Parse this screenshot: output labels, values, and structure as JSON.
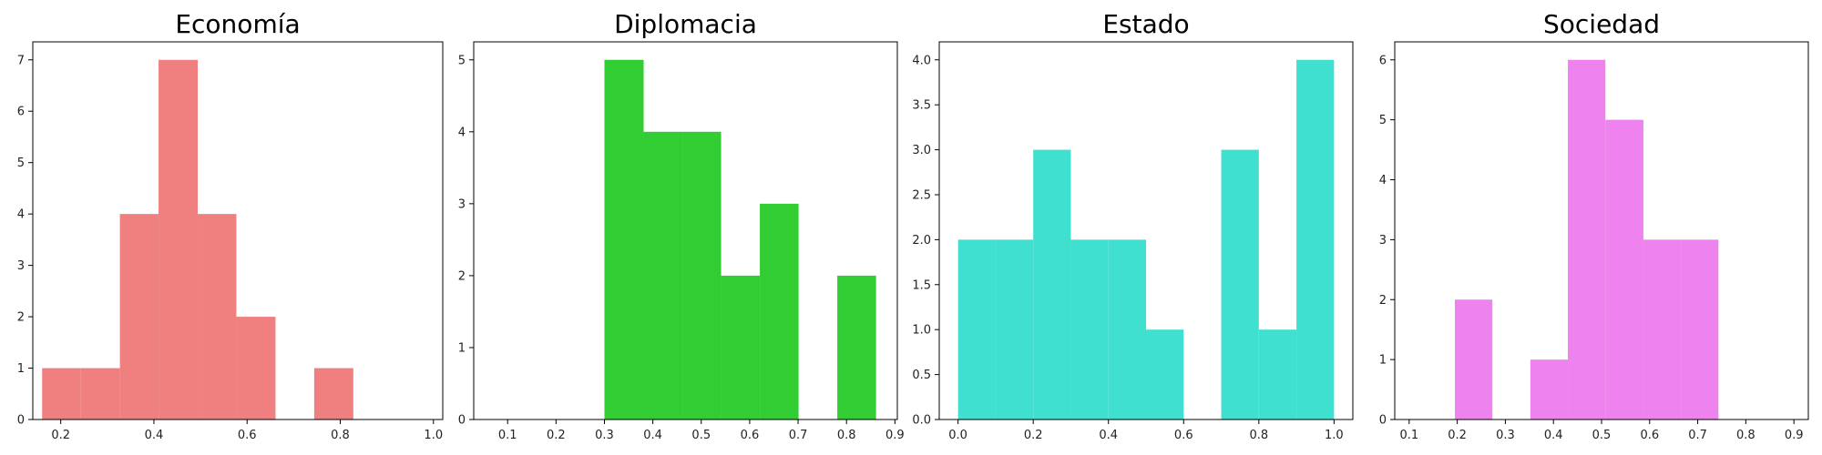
{
  "chart_data": [
    {
      "type": "bar",
      "title": "Economía",
      "color": "#f08080",
      "xlim": [
        0.14,
        1.02
      ],
      "ylim": [
        0,
        7.35
      ],
      "xticks": [
        0.2,
        0.4,
        0.6,
        0.8,
        1.0
      ],
      "xtick_labels": [
        "0.2",
        "0.4",
        "0.6",
        "0.8",
        "1.0"
      ],
      "yticks": [
        0,
        1,
        2,
        3,
        4,
        5,
        6,
        7
      ],
      "ytick_labels": [
        "0",
        "1",
        "2",
        "3",
        "4",
        "5",
        "6",
        "7"
      ],
      "bins": [
        {
          "x0": 0.16,
          "x1": 0.243,
          "count": 1
        },
        {
          "x0": 0.243,
          "x1": 0.327,
          "count": 1
        },
        {
          "x0": 0.327,
          "x1": 0.41,
          "count": 4
        },
        {
          "x0": 0.41,
          "x1": 0.494,
          "count": 7
        },
        {
          "x0": 0.494,
          "x1": 0.577,
          "count": 4
        },
        {
          "x0": 0.577,
          "x1": 0.661,
          "count": 2
        },
        {
          "x0": 0.661,
          "x1": 0.744,
          "count": 0
        },
        {
          "x0": 0.744,
          "x1": 0.828,
          "count": 1
        }
      ]
    },
    {
      "type": "bar",
      "title": "Diplomacia",
      "color": "#32cd32",
      "xlim": [
        0.03,
        0.905
      ],
      "ylim": [
        0,
        5.25
      ],
      "xticks": [
        0.1,
        0.2,
        0.3,
        0.4,
        0.5,
        0.6,
        0.7,
        0.8,
        0.9
      ],
      "xtick_labels": [
        "0.1",
        "0.2",
        "0.3",
        "0.4",
        "0.5",
        "0.6",
        "0.7",
        "0.8",
        "0.9"
      ],
      "yticks": [
        0,
        1,
        2,
        3,
        4,
        5
      ],
      "ytick_labels": [
        "0",
        "1",
        "2",
        "3",
        "4",
        "5"
      ],
      "bins": [
        {
          "x0": 0.3,
          "x1": 0.381,
          "count": 5
        },
        {
          "x0": 0.381,
          "x1": 0.461,
          "count": 4
        },
        {
          "x0": 0.461,
          "x1": 0.541,
          "count": 4
        },
        {
          "x0": 0.541,
          "x1": 0.621,
          "count": 2
        },
        {
          "x0": 0.621,
          "x1": 0.701,
          "count": 3
        },
        {
          "x0": 0.701,
          "x1": 0.781,
          "count": 0
        },
        {
          "x0": 0.781,
          "x1": 0.861,
          "count": 2
        }
      ]
    },
    {
      "type": "bar",
      "title": "Estado",
      "color": "#40e0d0",
      "xlim": [
        -0.05,
        1.05
      ],
      "ylim": [
        0,
        4.2
      ],
      "xticks": [
        0.0,
        0.2,
        0.4,
        0.6,
        0.8,
        1.0
      ],
      "xtick_labels": [
        "0.0",
        "0.2",
        "0.4",
        "0.6",
        "0.8",
        "1.0"
      ],
      "yticks": [
        0,
        0.5,
        1,
        1.5,
        2,
        2.5,
        3,
        3.5,
        4
      ],
      "ytick_labels": [
        "0.0",
        "0.5",
        "1.0",
        "1.5",
        "2.0",
        "2.5",
        "3.0",
        "3.5",
        "4.0"
      ],
      "bins": [
        {
          "x0": 0.0,
          "x1": 0.1,
          "count": 2
        },
        {
          "x0": 0.1,
          "x1": 0.2,
          "count": 2
        },
        {
          "x0": 0.2,
          "x1": 0.3,
          "count": 3
        },
        {
          "x0": 0.3,
          "x1": 0.4,
          "count": 2
        },
        {
          "x0": 0.4,
          "x1": 0.5,
          "count": 2
        },
        {
          "x0": 0.5,
          "x1": 0.6,
          "count": 1
        },
        {
          "x0": 0.6,
          "x1": 0.7,
          "count": 0
        },
        {
          "x0": 0.7,
          "x1": 0.8,
          "count": 3
        },
        {
          "x0": 0.8,
          "x1": 0.9,
          "count": 1
        },
        {
          "x0": 0.9,
          "x1": 1.0,
          "count": 4
        }
      ]
    },
    {
      "type": "bar",
      "title": "Sociedad",
      "color": "#ee82ee",
      "xlim": [
        0.07,
        0.93
      ],
      "ylim": [
        0,
        6.3
      ],
      "xticks": [
        0.1,
        0.2,
        0.3,
        0.4,
        0.5,
        0.6,
        0.7,
        0.8,
        0.9
      ],
      "xtick_labels": [
        "0.1",
        "0.2",
        "0.3",
        "0.4",
        "0.5",
        "0.6",
        "0.7",
        "0.8",
        "0.9"
      ],
      "yticks": [
        0,
        1,
        2,
        3,
        4,
        5,
        6
      ],
      "ytick_labels": [
        "0",
        "1",
        "2",
        "3",
        "4",
        "5",
        "6"
      ],
      "bins": [
        {
          "x0": 0.195,
          "x1": 0.273,
          "count": 2
        },
        {
          "x0": 0.273,
          "x1": 0.352,
          "count": 0
        },
        {
          "x0": 0.352,
          "x1": 0.43,
          "count": 1
        },
        {
          "x0": 0.43,
          "x1": 0.508,
          "count": 6
        },
        {
          "x0": 0.508,
          "x1": 0.587,
          "count": 5
        },
        {
          "x0": 0.587,
          "x1": 0.665,
          "count": 3
        },
        {
          "x0": 0.665,
          "x1": 0.743,
          "count": 3
        }
      ]
    }
  ]
}
